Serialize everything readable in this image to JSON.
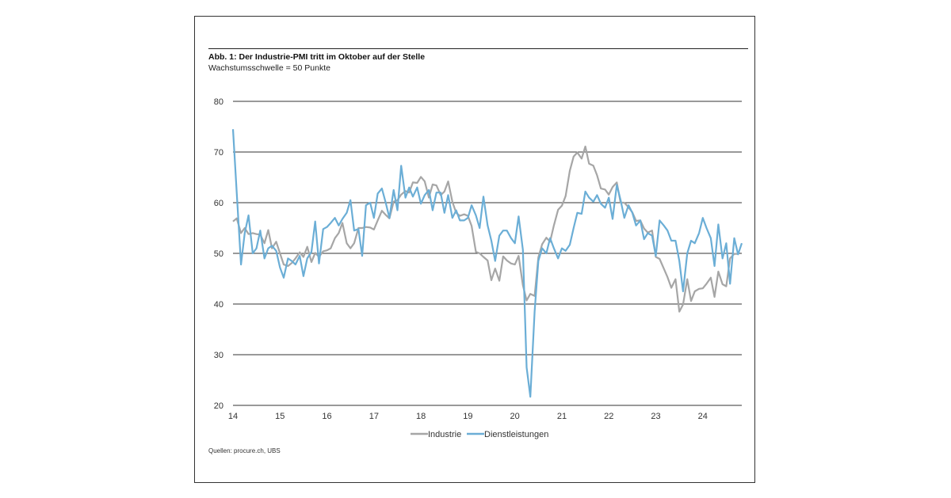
{
  "title": "Abb. 1: Der Industrie-PMI tritt im Oktober auf der Stelle",
  "subtitle": "Wachstumsschwelle = 50 Punkte",
  "source": "Quellen: procure.ch, UBS",
  "chart_data": {
    "type": "line",
    "title": "Abb. 1: Der Industrie-PMI tritt im Oktober auf der Stelle",
    "subtitle": "Wachstumsschwelle = 50 Punkte",
    "xlabel": "",
    "ylabel": "",
    "ylim": [
      20,
      80
    ],
    "yticks": [
      20,
      30,
      40,
      50,
      60,
      70,
      80
    ],
    "xlim": [
      2014.0,
      2024.83
    ],
    "xticks": [
      {
        "value": 2014,
        "label": "14"
      },
      {
        "value": 2015,
        "label": "15"
      },
      {
        "value": 2016,
        "label": "16"
      },
      {
        "value": 2017,
        "label": "17"
      },
      {
        "value": 2018,
        "label": "18"
      },
      {
        "value": 2019,
        "label": "19"
      },
      {
        "value": 2020,
        "label": "20"
      },
      {
        "value": 2021,
        "label": "21"
      },
      {
        "value": 2022,
        "label": "22"
      },
      {
        "value": 2023,
        "label": "23"
      },
      {
        "value": 2024,
        "label": "24"
      }
    ],
    "grid": "horizontal",
    "legend_position": "bottom-center",
    "series": [
      {
        "name": "Industrie",
        "color": "#a6a6a6",
        "points": [
          [
            2014.0,
            56.3
          ],
          [
            2014.08,
            56.9
          ],
          [
            2014.17,
            54.0
          ],
          [
            2014.25,
            55.0
          ],
          [
            2014.33,
            53.8
          ],
          [
            2014.42,
            54.0
          ],
          [
            2014.5,
            53.8
          ],
          [
            2014.58,
            53.7
          ],
          [
            2014.67,
            52.0
          ],
          [
            2014.75,
            54.6
          ],
          [
            2014.83,
            51.0
          ],
          [
            2014.92,
            52.3
          ],
          [
            2015.0,
            50.0
          ],
          [
            2015.08,
            47.8
          ],
          [
            2015.17,
            47.5
          ],
          [
            2015.25,
            48.1
          ],
          [
            2015.33,
            49.0
          ],
          [
            2015.42,
            50.2
          ],
          [
            2015.5,
            49.3
          ],
          [
            2015.58,
            51.3
          ],
          [
            2015.67,
            48.3
          ],
          [
            2015.75,
            50.1
          ],
          [
            2015.83,
            49.3
          ],
          [
            2015.92,
            50.4
          ],
          [
            2016.0,
            50.6
          ],
          [
            2016.08,
            51.0
          ],
          [
            2016.17,
            53.0
          ],
          [
            2016.25,
            54.0
          ],
          [
            2016.33,
            56.0
          ],
          [
            2016.42,
            52.0
          ],
          [
            2016.5,
            51.0
          ],
          [
            2016.58,
            52.0
          ],
          [
            2016.67,
            55.0
          ],
          [
            2016.75,
            55.0
          ],
          [
            2016.83,
            55.2
          ],
          [
            2016.92,
            55.1
          ],
          [
            2017.0,
            54.7
          ],
          [
            2017.08,
            56.5
          ],
          [
            2017.17,
            58.4
          ],
          [
            2017.25,
            57.6
          ],
          [
            2017.33,
            56.9
          ],
          [
            2017.42,
            60.2
          ],
          [
            2017.5,
            60.5
          ],
          [
            2017.58,
            61.6
          ],
          [
            2017.67,
            62.3
          ],
          [
            2017.75,
            62.0
          ],
          [
            2017.83,
            64.0
          ],
          [
            2017.92,
            63.9
          ],
          [
            2018.0,
            65.1
          ],
          [
            2018.08,
            64.2
          ],
          [
            2018.17,
            61.0
          ],
          [
            2018.25,
            63.6
          ],
          [
            2018.33,
            63.4
          ],
          [
            2018.42,
            61.5
          ],
          [
            2018.5,
            62.2
          ],
          [
            2018.58,
            64.2
          ],
          [
            2018.67,
            60.2
          ],
          [
            2018.75,
            58.0
          ],
          [
            2018.83,
            57.4
          ],
          [
            2018.92,
            57.7
          ],
          [
            2019.0,
            57.4
          ],
          [
            2019.08,
            55.4
          ],
          [
            2019.17,
            50.3
          ],
          [
            2019.25,
            50.0
          ],
          [
            2019.33,
            49.3
          ],
          [
            2019.42,
            48.6
          ],
          [
            2019.5,
            44.7
          ],
          [
            2019.58,
            47.0
          ],
          [
            2019.67,
            44.6
          ],
          [
            2019.75,
            49.4
          ],
          [
            2019.83,
            48.6
          ],
          [
            2019.92,
            48.0
          ],
          [
            2020.0,
            47.8
          ],
          [
            2020.08,
            49.5
          ],
          [
            2020.17,
            43.7
          ],
          [
            2020.25,
            40.7
          ],
          [
            2020.33,
            42.0
          ],
          [
            2020.42,
            41.6
          ],
          [
            2020.5,
            49.2
          ],
          [
            2020.58,
            51.8
          ],
          [
            2020.67,
            53.1
          ],
          [
            2020.75,
            52.3
          ],
          [
            2020.83,
            55.5
          ],
          [
            2020.92,
            58.6
          ],
          [
            2021.0,
            59.4
          ],
          [
            2021.08,
            61.3
          ],
          [
            2021.17,
            66.3
          ],
          [
            2021.25,
            69.1
          ],
          [
            2021.33,
            69.9
          ],
          [
            2021.42,
            68.7
          ],
          [
            2021.5,
            71.1
          ],
          [
            2021.58,
            67.7
          ],
          [
            2021.67,
            67.3
          ],
          [
            2021.75,
            65.4
          ],
          [
            2021.83,
            62.8
          ],
          [
            2021.92,
            62.6
          ],
          [
            2022.0,
            61.6
          ],
          [
            2022.08,
            63.1
          ],
          [
            2022.17,
            64.0
          ],
          [
            2022.25,
            60.0
          ],
          [
            2022.33,
            60.0
          ],
          [
            2022.42,
            59.1
          ],
          [
            2022.5,
            58.1
          ],
          [
            2022.58,
            56.4
          ],
          [
            2022.67,
            56.5
          ],
          [
            2022.75,
            54.9
          ],
          [
            2022.83,
            54.1
          ],
          [
            2022.92,
            54.5
          ],
          [
            2023.0,
            49.3
          ],
          [
            2023.08,
            48.9
          ],
          [
            2023.17,
            47.0
          ],
          [
            2023.25,
            45.3
          ],
          [
            2023.33,
            43.2
          ],
          [
            2023.42,
            44.9
          ],
          [
            2023.5,
            38.5
          ],
          [
            2023.58,
            39.9
          ],
          [
            2023.67,
            44.9
          ],
          [
            2023.75,
            40.6
          ],
          [
            2023.83,
            42.5
          ],
          [
            2023.92,
            43.0
          ],
          [
            2024.0,
            43.1
          ],
          [
            2024.08,
            44.0
          ],
          [
            2024.17,
            45.2
          ],
          [
            2024.25,
            41.4
          ],
          [
            2024.33,
            46.4
          ],
          [
            2024.42,
            43.9
          ],
          [
            2024.5,
            43.5
          ],
          [
            2024.58,
            49.0
          ],
          [
            2024.67,
            49.9
          ],
          [
            2024.75,
            49.9
          ]
        ]
      },
      {
        "name": "Dienstleistungen",
        "color": "#6baed6",
        "points": [
          [
            2014.0,
            74.5
          ],
          [
            2014.08,
            62.0
          ],
          [
            2014.17,
            47.8
          ],
          [
            2014.25,
            54.0
          ],
          [
            2014.33,
            57.5
          ],
          [
            2014.42,
            50.0
          ],
          [
            2014.5,
            51.0
          ],
          [
            2014.58,
            54.5
          ],
          [
            2014.67,
            49.0
          ],
          [
            2014.75,
            51.0
          ],
          [
            2014.83,
            51.5
          ],
          [
            2014.92,
            50.5
          ],
          [
            2015.0,
            47.2
          ],
          [
            2015.08,
            45.2
          ],
          [
            2015.17,
            49.0
          ],
          [
            2015.25,
            48.5
          ],
          [
            2015.33,
            47.8
          ],
          [
            2015.42,
            49.5
          ],
          [
            2015.5,
            45.5
          ],
          [
            2015.58,
            49.0
          ],
          [
            2015.67,
            50.3
          ],
          [
            2015.75,
            56.3
          ],
          [
            2015.83,
            48.0
          ],
          [
            2015.92,
            54.8
          ],
          [
            2016.0,
            55.2
          ],
          [
            2016.08,
            56.0
          ],
          [
            2016.17,
            57.0
          ],
          [
            2016.25,
            55.5
          ],
          [
            2016.33,
            56.8
          ],
          [
            2016.42,
            58.0
          ],
          [
            2016.5,
            60.5
          ],
          [
            2016.58,
            54.5
          ],
          [
            2016.67,
            54.8
          ],
          [
            2016.75,
            49.5
          ],
          [
            2016.83,
            59.5
          ],
          [
            2016.92,
            60.0
          ],
          [
            2017.0,
            57.0
          ],
          [
            2017.08,
            61.8
          ],
          [
            2017.17,
            62.8
          ],
          [
            2017.25,
            60.0
          ],
          [
            2017.33,
            57.0
          ],
          [
            2017.42,
            62.5
          ],
          [
            2017.5,
            58.5
          ],
          [
            2017.58,
            67.3
          ],
          [
            2017.67,
            61.0
          ],
          [
            2017.75,
            63.0
          ],
          [
            2017.83,
            61.2
          ],
          [
            2017.92,
            63.0
          ],
          [
            2018.0,
            59.8
          ],
          [
            2018.08,
            61.5
          ],
          [
            2018.17,
            62.5
          ],
          [
            2018.25,
            58.5
          ],
          [
            2018.33,
            62.0
          ],
          [
            2018.42,
            62.0
          ],
          [
            2018.5,
            58.0
          ],
          [
            2018.58,
            61.5
          ],
          [
            2018.67,
            57.0
          ],
          [
            2018.75,
            58.5
          ],
          [
            2018.83,
            56.5
          ],
          [
            2018.92,
            56.5
          ],
          [
            2019.0,
            57.0
          ],
          [
            2019.08,
            59.5
          ],
          [
            2019.17,
            57.5
          ],
          [
            2019.25,
            55.0
          ],
          [
            2019.33,
            61.2
          ],
          [
            2019.42,
            55.5
          ],
          [
            2019.5,
            52.5
          ],
          [
            2019.58,
            48.5
          ],
          [
            2019.67,
            53.5
          ],
          [
            2019.75,
            54.5
          ],
          [
            2019.83,
            54.5
          ],
          [
            2019.92,
            53.0
          ],
          [
            2020.0,
            52.0
          ],
          [
            2020.08,
            57.3
          ],
          [
            2020.17,
            50.7
          ],
          [
            2020.25,
            27.5
          ],
          [
            2020.33,
            21.7
          ],
          [
            2020.42,
            38.5
          ],
          [
            2020.5,
            48.5
          ],
          [
            2020.58,
            51.0
          ],
          [
            2020.67,
            50.0
          ],
          [
            2020.75,
            53.0
          ],
          [
            2020.83,
            51.0
          ],
          [
            2020.92,
            49.0
          ],
          [
            2021.0,
            51.0
          ],
          [
            2021.08,
            50.5
          ],
          [
            2021.17,
            51.7
          ],
          [
            2021.25,
            55.0
          ],
          [
            2021.33,
            58.0
          ],
          [
            2021.42,
            57.8
          ],
          [
            2021.5,
            62.2
          ],
          [
            2021.58,
            61.0
          ],
          [
            2021.67,
            60.2
          ],
          [
            2021.75,
            61.5
          ],
          [
            2021.83,
            59.8
          ],
          [
            2021.92,
            59.0
          ],
          [
            2022.0,
            61.0
          ],
          [
            2022.08,
            56.8
          ],
          [
            2022.17,
            63.5
          ],
          [
            2022.25,
            60.5
          ],
          [
            2022.33,
            57.0
          ],
          [
            2022.42,
            59.5
          ],
          [
            2022.5,
            58.0
          ],
          [
            2022.58,
            55.5
          ],
          [
            2022.67,
            56.5
          ],
          [
            2022.75,
            52.8
          ],
          [
            2022.83,
            54.0
          ],
          [
            2022.92,
            53.5
          ],
          [
            2023.0,
            49.5
          ],
          [
            2023.08,
            56.5
          ],
          [
            2023.17,
            55.5
          ],
          [
            2023.25,
            54.5
          ],
          [
            2023.33,
            52.5
          ],
          [
            2023.42,
            52.5
          ],
          [
            2023.5,
            48.5
          ],
          [
            2023.58,
            42.5
          ],
          [
            2023.67,
            50.0
          ],
          [
            2023.75,
            52.5
          ],
          [
            2023.83,
            52.0
          ],
          [
            2023.92,
            54.0
          ],
          [
            2024.0,
            57.0
          ],
          [
            2024.08,
            55.0
          ],
          [
            2024.17,
            53.0
          ],
          [
            2024.25,
            47.5
          ],
          [
            2024.33,
            55.7
          ],
          [
            2024.42,
            49.0
          ],
          [
            2024.5,
            52.0
          ],
          [
            2024.58,
            44.0
          ],
          [
            2024.67,
            53.0
          ],
          [
            2024.75,
            49.8
          ],
          [
            2024.83,
            52.0
          ]
        ]
      }
    ]
  }
}
